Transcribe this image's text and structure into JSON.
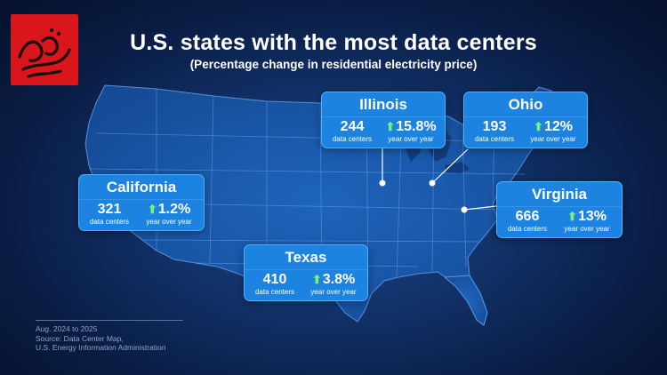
{
  "header": {
    "title": "U.S. states with the most data centers",
    "subtitle": "(Percentage change in residential electricity price)"
  },
  "logo": {
    "text": "همشهری آنلاین",
    "color": "#d8161c"
  },
  "cards": [
    {
      "id": "illinois",
      "state": "Illinois",
      "count": "244",
      "count_label": "data centers",
      "change": "15.8%",
      "change_label": "year over year"
    },
    {
      "id": "ohio",
      "state": "Ohio",
      "count": "193",
      "count_label": "data centers",
      "change": "12%",
      "change_label": "year over year"
    },
    {
      "id": "california",
      "state": "California",
      "count": "321",
      "count_label": "data centers",
      "change": "1.2%",
      "change_label": "year over year"
    },
    {
      "id": "virginia",
      "state": "Virginia",
      "count": "666",
      "count_label": "data centers",
      "change": "13%",
      "change_label": "year over year"
    },
    {
      "id": "texas",
      "state": "Texas",
      "count": "410",
      "count_label": "data centers",
      "change": "3.8%",
      "change_label": "year over year"
    }
  ],
  "footer": {
    "period": "Aug. 2024 to 2025",
    "source_line1": "Source: Data Center Map,",
    "source_line2": "U.S. Energy Information Administration"
  },
  "colors": {
    "card_header": "#1c83e0",
    "card_border": "#4fb0ff",
    "arrow": "#7cf07a",
    "map_land": "#1a5cb0",
    "map_lines": "#6aa6e8"
  }
}
